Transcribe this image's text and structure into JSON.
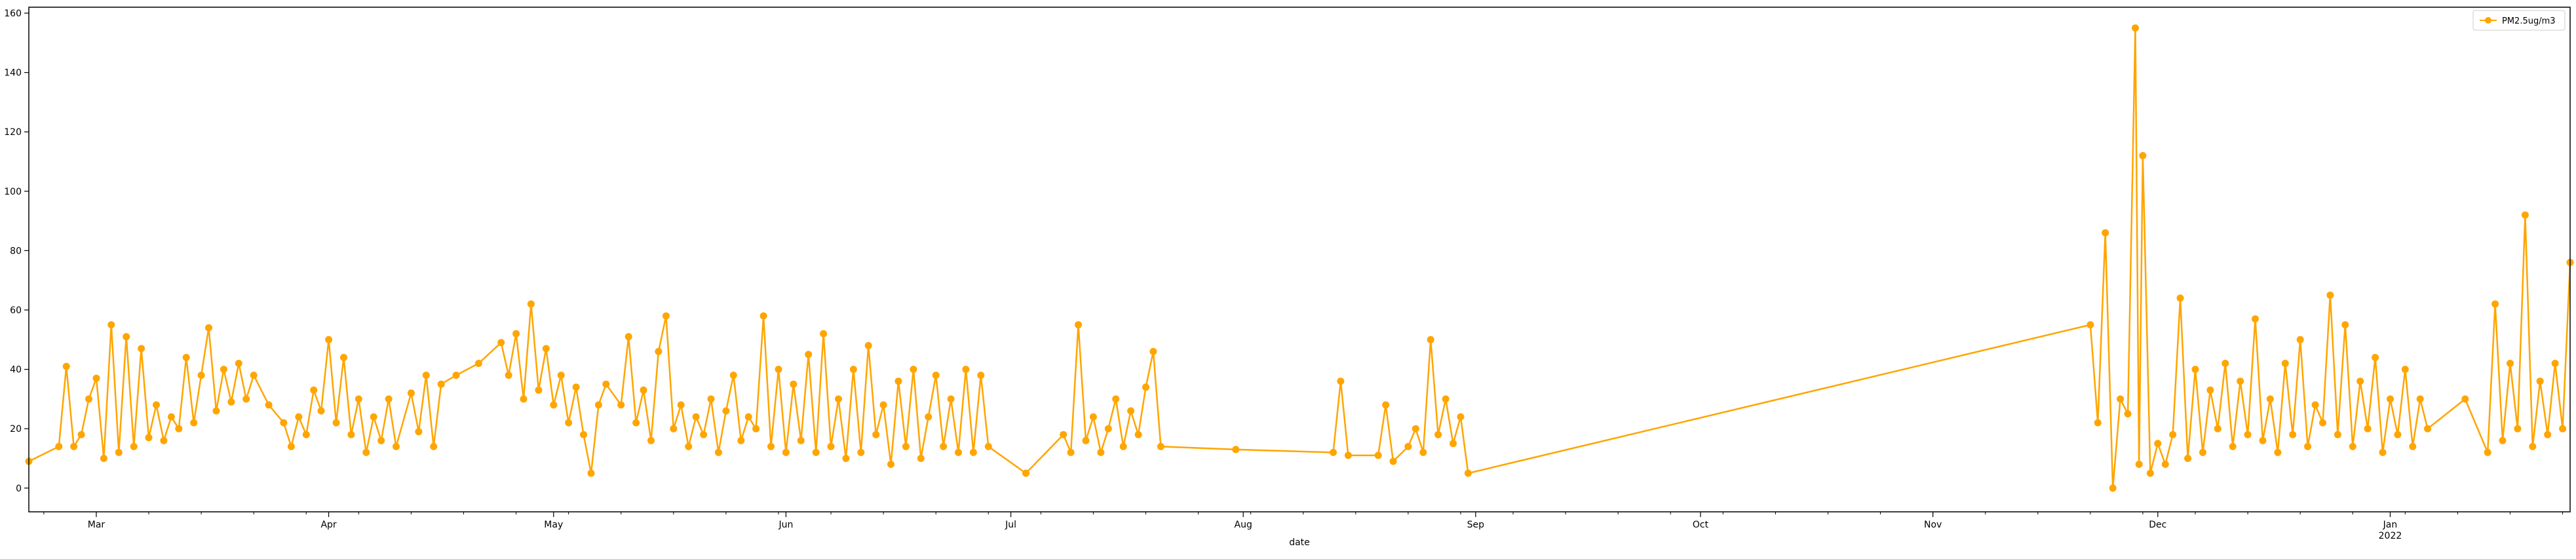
{
  "chart_data": {
    "type": "line",
    "title": "",
    "xlabel": "date",
    "ylabel": "",
    "xlim": [
      "2021-02-20",
      "2022-01-25"
    ],
    "ylim": [
      -8,
      162
    ],
    "yticks": [
      0,
      20,
      40,
      60,
      80,
      100,
      120,
      140,
      160
    ],
    "xticks": [
      {
        "date": "2021-03-01",
        "label": "Mar"
      },
      {
        "date": "2021-04-01",
        "label": "Apr"
      },
      {
        "date": "2021-05-01",
        "label": "May"
      },
      {
        "date": "2021-06-01",
        "label": "Jun"
      },
      {
        "date": "2021-07-01",
        "label": "Jul"
      },
      {
        "date": "2021-08-01",
        "label": "Aug"
      },
      {
        "date": "2021-09-01",
        "label": "Sep"
      },
      {
        "date": "2021-10-01",
        "label": "Oct"
      },
      {
        "date": "2021-11-01",
        "label": "Nov"
      },
      {
        "date": "2021-12-01",
        "label": "Dec"
      },
      {
        "date": "2022-01-01",
        "label": "Jan",
        "label2": "2022"
      }
    ],
    "grid": false,
    "legend": {
      "position": "top-right"
    },
    "colors": {
      "series": "#FFA500",
      "axis": "#000000",
      "background": "#ffffff"
    },
    "series": [
      {
        "name": "PM2.5ug/m3",
        "marker": "o",
        "points": [
          [
            "2021-02-20",
            9
          ],
          [
            "2021-02-24",
            14
          ],
          [
            "2021-02-25",
            41
          ],
          [
            "2021-02-26",
            14
          ],
          [
            "2021-02-27",
            18
          ],
          [
            "2021-02-28",
            30
          ],
          [
            "2021-03-01",
            37
          ],
          [
            "2021-03-02",
            10
          ],
          [
            "2021-03-03",
            55
          ],
          [
            "2021-03-04",
            12
          ],
          [
            "2021-03-05",
            51
          ],
          [
            "2021-03-06",
            14
          ],
          [
            "2021-03-07",
            47
          ],
          [
            "2021-03-08",
            17
          ],
          [
            "2021-03-09",
            28
          ],
          [
            "2021-03-10",
            16
          ],
          [
            "2021-03-11",
            24
          ],
          [
            "2021-03-12",
            20
          ],
          [
            "2021-03-13",
            44
          ],
          [
            "2021-03-14",
            22
          ],
          [
            "2021-03-15",
            38
          ],
          [
            "2021-03-16",
            54
          ],
          [
            "2021-03-17",
            26
          ],
          [
            "2021-03-18",
            40
          ],
          [
            "2021-03-19",
            29
          ],
          [
            "2021-03-20",
            42
          ],
          [
            "2021-03-21",
            30
          ],
          [
            "2021-03-22",
            38
          ],
          [
            "2021-03-24",
            28
          ],
          [
            "2021-03-26",
            22
          ],
          [
            "2021-03-27",
            14
          ],
          [
            "2021-03-28",
            24
          ],
          [
            "2021-03-29",
            18
          ],
          [
            "2021-03-30",
            33
          ],
          [
            "2021-03-31",
            26
          ],
          [
            "2021-04-01",
            50
          ],
          [
            "2021-04-02",
            22
          ],
          [
            "2021-04-03",
            44
          ],
          [
            "2021-04-04",
            18
          ],
          [
            "2021-04-05",
            30
          ],
          [
            "2021-04-06",
            12
          ],
          [
            "2021-04-07",
            24
          ],
          [
            "2021-04-08",
            16
          ],
          [
            "2021-04-09",
            30
          ],
          [
            "2021-04-10",
            14
          ],
          [
            "2021-04-12",
            32
          ],
          [
            "2021-04-13",
            19
          ],
          [
            "2021-04-14",
            38
          ],
          [
            "2021-04-15",
            14
          ],
          [
            "2021-04-16",
            35
          ],
          [
            "2021-04-18",
            38
          ],
          [
            "2021-04-21",
            42
          ],
          [
            "2021-04-24",
            49
          ],
          [
            "2021-04-25",
            38
          ],
          [
            "2021-04-26",
            52
          ],
          [
            "2021-04-27",
            30
          ],
          [
            "2021-04-28",
            62
          ],
          [
            "2021-04-29",
            33
          ],
          [
            "2021-04-30",
            47
          ],
          [
            "2021-05-01",
            28
          ],
          [
            "2021-05-02",
            38
          ],
          [
            "2021-05-03",
            22
          ],
          [
            "2021-05-04",
            34
          ],
          [
            "2021-05-05",
            18
          ],
          [
            "2021-05-06",
            5
          ],
          [
            "2021-05-07",
            28
          ],
          [
            "2021-05-08",
            35
          ],
          [
            "2021-05-10",
            28
          ],
          [
            "2021-05-11",
            51
          ],
          [
            "2021-05-12",
            22
          ],
          [
            "2021-05-13",
            33
          ],
          [
            "2021-05-14",
            16
          ],
          [
            "2021-05-15",
            46
          ],
          [
            "2021-05-16",
            58
          ],
          [
            "2021-05-17",
            20
          ],
          [
            "2021-05-18",
            28
          ],
          [
            "2021-05-19",
            14
          ],
          [
            "2021-05-20",
            24
          ],
          [
            "2021-05-21",
            18
          ],
          [
            "2021-05-22",
            30
          ],
          [
            "2021-05-23",
            12
          ],
          [
            "2021-05-24",
            26
          ],
          [
            "2021-05-25",
            38
          ],
          [
            "2021-05-26",
            16
          ],
          [
            "2021-05-27",
            24
          ],
          [
            "2021-05-28",
            20
          ],
          [
            "2021-05-29",
            58
          ],
          [
            "2021-05-30",
            14
          ],
          [
            "2021-05-31",
            40
          ],
          [
            "2021-06-01",
            12
          ],
          [
            "2021-06-02",
            35
          ],
          [
            "2021-06-03",
            16
          ],
          [
            "2021-06-04",
            45
          ],
          [
            "2021-06-05",
            12
          ],
          [
            "2021-06-06",
            52
          ],
          [
            "2021-06-07",
            14
          ],
          [
            "2021-06-08",
            30
          ],
          [
            "2021-06-09",
            10
          ],
          [
            "2021-06-10",
            40
          ],
          [
            "2021-06-11",
            12
          ],
          [
            "2021-06-12",
            48
          ],
          [
            "2021-06-13",
            18
          ],
          [
            "2021-06-14",
            28
          ],
          [
            "2021-06-15",
            8
          ],
          [
            "2021-06-16",
            36
          ],
          [
            "2021-06-17",
            14
          ],
          [
            "2021-06-18",
            40
          ],
          [
            "2021-06-19",
            10
          ],
          [
            "2021-06-20",
            24
          ],
          [
            "2021-06-21",
            38
          ],
          [
            "2021-06-22",
            14
          ],
          [
            "2021-06-23",
            30
          ],
          [
            "2021-06-24",
            12
          ],
          [
            "2021-06-25",
            40
          ],
          [
            "2021-06-26",
            12
          ],
          [
            "2021-06-27",
            38
          ],
          [
            "2021-06-28",
            14
          ],
          [
            "2021-07-03",
            5
          ],
          [
            "2021-07-08",
            18
          ],
          [
            "2021-07-09",
            12
          ],
          [
            "2021-07-10",
            55
          ],
          [
            "2021-07-11",
            16
          ],
          [
            "2021-07-12",
            24
          ],
          [
            "2021-07-13",
            12
          ],
          [
            "2021-07-14",
            20
          ],
          [
            "2021-07-15",
            30
          ],
          [
            "2021-07-16",
            14
          ],
          [
            "2021-07-17",
            26
          ],
          [
            "2021-07-18",
            18
          ],
          [
            "2021-07-19",
            34
          ],
          [
            "2021-07-20",
            46
          ],
          [
            "2021-07-21",
            14
          ],
          [
            "2021-07-31",
            13
          ],
          [
            "2021-08-13",
            12
          ],
          [
            "2021-08-14",
            36
          ],
          [
            "2021-08-15",
            11
          ],
          [
            "2021-08-19",
            11
          ],
          [
            "2021-08-20",
            28
          ],
          [
            "2021-08-21",
            9
          ],
          [
            "2021-08-23",
            14
          ],
          [
            "2021-08-24",
            20
          ],
          [
            "2021-08-25",
            12
          ],
          [
            "2021-08-26",
            50
          ],
          [
            "2021-08-27",
            18
          ],
          [
            "2021-08-28",
            30
          ],
          [
            "2021-08-29",
            15
          ],
          [
            "2021-08-30",
            24
          ],
          [
            "2021-08-31",
            5
          ],
          [
            "2021-11-22",
            55
          ],
          [
            "2021-11-23",
            22
          ],
          [
            "2021-11-24",
            86
          ],
          [
            "2021-11-25",
            0
          ],
          [
            "2021-11-26",
            30
          ],
          [
            "2021-11-27",
            25
          ],
          [
            "2021-11-28",
            155
          ],
          [
            "2021-11-28T12:00",
            8
          ],
          [
            "2021-11-29",
            112
          ],
          [
            "2021-11-30",
            5
          ],
          [
            "2021-12-01",
            15
          ],
          [
            "2021-12-02",
            8
          ],
          [
            "2021-12-03",
            18
          ],
          [
            "2021-12-04",
            64
          ],
          [
            "2021-12-05",
            10
          ],
          [
            "2021-12-06",
            40
          ],
          [
            "2021-12-07",
            12
          ],
          [
            "2021-12-08",
            33
          ],
          [
            "2021-12-09",
            20
          ],
          [
            "2021-12-10",
            42
          ],
          [
            "2021-12-11",
            14
          ],
          [
            "2021-12-12",
            36
          ],
          [
            "2021-12-13",
            18
          ],
          [
            "2021-12-14",
            57
          ],
          [
            "2021-12-15",
            16
          ],
          [
            "2021-12-16",
            30
          ],
          [
            "2021-12-17",
            12
          ],
          [
            "2021-12-18",
            42
          ],
          [
            "2021-12-19",
            18
          ],
          [
            "2021-12-20",
            50
          ],
          [
            "2021-12-21",
            14
          ],
          [
            "2021-12-22",
            28
          ],
          [
            "2021-12-23",
            22
          ],
          [
            "2021-12-24",
            65
          ],
          [
            "2021-12-25",
            18
          ],
          [
            "2021-12-26",
            55
          ],
          [
            "2021-12-27",
            14
          ],
          [
            "2021-12-28",
            36
          ],
          [
            "2021-12-29",
            20
          ],
          [
            "2021-12-30",
            44
          ],
          [
            "2021-12-31",
            12
          ],
          [
            "2022-01-01",
            30
          ],
          [
            "2022-01-02",
            18
          ],
          [
            "2022-01-03",
            40
          ],
          [
            "2022-01-04",
            14
          ],
          [
            "2022-01-05",
            30
          ],
          [
            "2022-01-06",
            20
          ],
          [
            "2022-01-11",
            30
          ],
          [
            "2022-01-14",
            12
          ],
          [
            "2022-01-15",
            62
          ],
          [
            "2022-01-16",
            16
          ],
          [
            "2022-01-17",
            42
          ],
          [
            "2022-01-18",
            20
          ],
          [
            "2022-01-19",
            92
          ],
          [
            "2022-01-20",
            14
          ],
          [
            "2022-01-21",
            36
          ],
          [
            "2022-01-22",
            18
          ],
          [
            "2022-01-23",
            42
          ],
          [
            "2022-01-24",
            20
          ],
          [
            "2022-01-25",
            76
          ]
        ]
      }
    ]
  }
}
